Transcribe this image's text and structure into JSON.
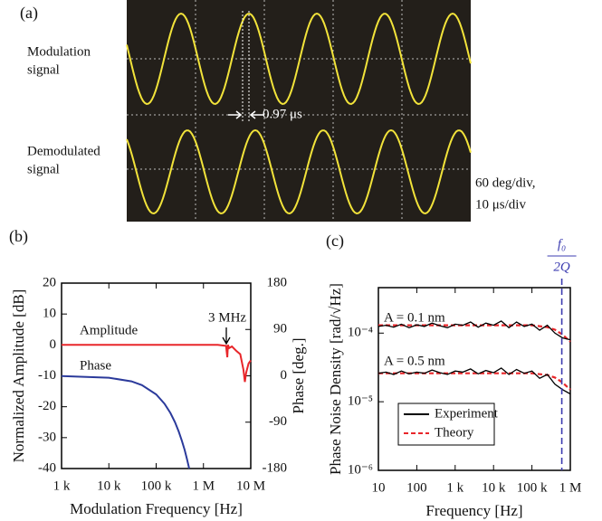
{
  "panel_a": {
    "label": "(a)",
    "top_signal": [
      "Modulation",
      "signal"
    ],
    "bottom_signal": [
      "Demodulated",
      "signal"
    ],
    "delay": "0.97 μs",
    "scale": [
      "60 deg/div,",
      "10 μs/div"
    ]
  },
  "chart_data": [
    {
      "type": "line",
      "label": "(b)",
      "xlabel": "Modulation Frequency [Hz]",
      "ylabel": "Normalized Amplitude [dB]",
      "y2label": "Phase [deg.]",
      "xscale": "log",
      "xlim": [
        1000,
        10000000
      ],
      "xticks": [
        {
          "value": 1000,
          "label": "1 k"
        },
        {
          "value": 10000,
          "label": "10 k"
        },
        {
          "value": 100000,
          "label": "100 k"
        },
        {
          "value": 1000000,
          "label": "1 M"
        },
        {
          "value": 10000000,
          "label": "10 M"
        }
      ],
      "ylim": [
        -40,
        20
      ],
      "yticks": [
        -40,
        -30,
        -20,
        -10,
        0,
        10,
        20
      ],
      "y2lim": [
        -180,
        180
      ],
      "y2ticks": [
        -180,
        -90,
        0,
        90,
        180
      ],
      "series": [
        {
          "name": "Amplitude",
          "color": "#e8262a",
          "x": [
            1000,
            10000,
            100000,
            1000000,
            2000000,
            3000000,
            3200000,
            3300000,
            3500000,
            4000000,
            5000000,
            6000000,
            7000000,
            7500000,
            8000000,
            9000000,
            10000000
          ],
          "values": [
            0,
            0,
            0,
            0,
            0,
            -0.3,
            -4,
            0,
            -1,
            -0.5,
            -2,
            -3,
            -8,
            -12,
            -9,
            -6,
            -5
          ]
        },
        {
          "name": "Phase",
          "color": "#2b3a9b",
          "axis": "y2",
          "x": [
            1000,
            10000,
            30000,
            50000,
            100000,
            150000,
            200000,
            250000,
            300000,
            350000,
            400000,
            450000,
            500000
          ],
          "values": [
            -0.36,
            -3.6,
            -10.8,
            -18,
            -36,
            -54,
            -72,
            -90,
            -108,
            -126,
            -144,
            -162,
            -180
          ]
        }
      ],
      "annotations": [
        {
          "text": "Amplitude"
        },
        {
          "text": "Phase"
        },
        {
          "text": "3 MHz"
        }
      ]
    },
    {
      "type": "line",
      "label": "(c)",
      "xlabel": "Frequency [Hz]",
      "ylabel": "Phase Noise Density [rad/√Hz]",
      "xscale": "log",
      "yscale": "log",
      "xlim": [
        10,
        1000000
      ],
      "ylim": [
        1e-06,
        0.00046
      ],
      "xticks": [
        10,
        100,
        {
          "value": 1000,
          "label": "1 k"
        },
        {
          "value": 10000,
          "label": "10 k"
        },
        {
          "value": 100000,
          "label": "100 k"
        },
        {
          "value": 1000000,
          "label": "1 M"
        }
      ],
      "yticks": [
        {
          "value": 1e-06,
          "label": "10⁻⁶"
        },
        {
          "value": 1e-05,
          "label": "10⁻⁵"
        },
        {
          "value": 0.0001,
          "label": "10⁻⁴"
        }
      ],
      "legend": "lower-left",
      "series": [
        {
          "name": "Theory",
          "color": "#e8262a",
          "dashed": true,
          "lines": [
            {
              "x": [
                10,
                100,
                1000,
                10000,
                100000,
                251189,
                398107,
                630957,
                1000000
              ],
              "values": [
                0.00013,
                0.00013,
                0.00013,
                0.00013,
                0.00013,
                0.000122,
                0.000112,
                9.5e-05,
                7.5e-05
              ]
            },
            {
              "x": [
                10,
                100,
                1000,
                10000,
                100000,
                251189,
                398107,
                630957,
                1000000
              ],
              "values": [
                2.6e-05,
                2.6e-05,
                2.6e-05,
                2.6e-05,
                2.6e-05,
                2.45e-05,
                2.25e-05,
                1.9e-05,
                1.5e-05
              ]
            }
          ]
        },
        {
          "name": "Experiment",
          "color": "#000000",
          "lines": [
            {
              "x": [
                10,
                15.8,
                25.1,
                39.8,
                63.1,
                100,
                158,
                251,
                398,
                631,
                1000,
                1585,
                2512,
                3981,
                6310,
                10000,
                15849,
                25119,
                39811,
                63096,
                100000,
                158489,
                251189,
                398107,
                630957,
                1000000
              ],
              "values": [
                0.000125,
                0.00013,
                0.000122,
                0.000135,
                0.00012,
                0.000132,
                0.000125,
                0.00014,
                0.000128,
                0.00012,
                0.000135,
                0.00013,
                0.000145,
                0.000122,
                0.00014,
                0.00013,
                0.00015,
                0.00012,
                0.000145,
                0.000125,
                0.000135,
                0.00011,
                0.00013,
                0.0001,
                8.5e-05,
                8e-05
              ]
            },
            {
              "x": [
                10,
                15.8,
                25.1,
                39.8,
                63.1,
                100,
                158,
                251,
                398,
                631,
                1000,
                1585,
                2512,
                3981,
                6310,
                10000,
                15849,
                25119,
                39811,
                63096,
                100000,
                158489,
                251189,
                398107,
                630957,
                1000000
              ],
              "values": [
                2.6e-05,
                2.7e-05,
                2.5e-05,
                2.8e-05,
                2.55e-05,
                2.7e-05,
                2.6e-05,
                2.9e-05,
                2.65e-05,
                2.5e-05,
                2.8e-05,
                2.7e-05,
                3e-05,
                2.55e-05,
                2.85e-05,
                2.65e-05,
                3.1e-05,
                2.5e-05,
                2.95e-05,
                2.6e-05,
                2.8e-05,
                2.2e-05,
                2.5e-05,
                1.8e-05,
                1.5e-05,
                1.3e-05
              ]
            }
          ]
        }
      ],
      "vline": {
        "x": 600000,
        "color": "#3c3cb0",
        "numerator": "f₀",
        "denominator": "2Q"
      },
      "annotations": [
        {
          "text": "A = 0.1 nm"
        },
        {
          "text": "A = 0.5 nm"
        }
      ]
    }
  ]
}
